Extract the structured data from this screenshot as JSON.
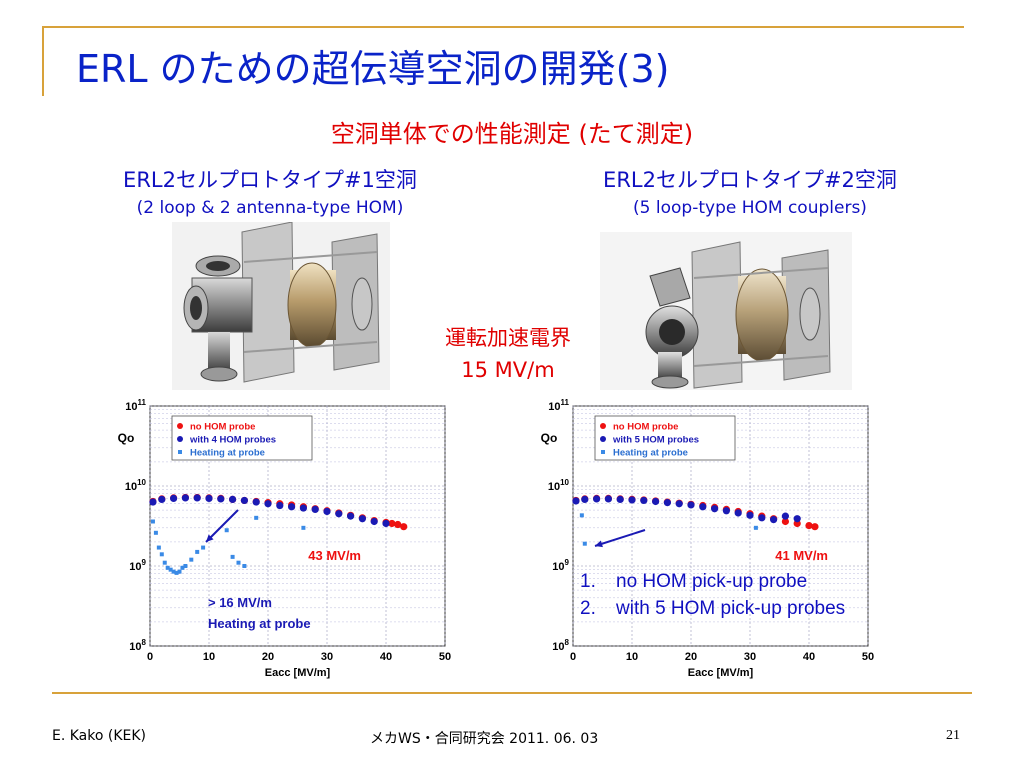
{
  "slide": {
    "title": "ERL のための超伝導空洞の開発(3)",
    "subtitle": "空洞単体での性能測定 (たて測定)",
    "cavity1": {
      "title": "ERL2セルプロトタイプ#1空洞",
      "subtitle": "(2 loop & 2 antenna-type HOM)"
    },
    "cavity2": {
      "title": "ERL2セルプロトタイプ#2空洞",
      "subtitle": "(5 loop-type HOM couplers)"
    },
    "operating_field": {
      "label": "運転加速電界",
      "value": "15 MV/m"
    },
    "notes": [
      {
        "num": "1.",
        "text": "no HOM pick-up probe"
      },
      {
        "num": "2.",
        "text": "with 5 HOM pick-up probes"
      }
    ],
    "footer": {
      "author": "E. Kako (KEK)",
      "event": "メカWS・合同研究会 2011. 06. 03",
      "page": "21"
    }
  },
  "colors": {
    "title": "#0a23c8",
    "accent_red": "#e00000",
    "rule": "#d8a23a",
    "series_red": "#ee1111",
    "series_blue": "#1a1ab4",
    "series_heating": "#3a8ae6"
  },
  "chart_data": [
    {
      "type": "scatter",
      "xlabel": "Eacc [MV/m]",
      "ylabel": "Qo",
      "xlim": [
        0,
        50
      ],
      "xticks": [
        0,
        10,
        20,
        30,
        40,
        50
      ],
      "ylim": [
        100000000.0,
        100000000000.0
      ],
      "yscale": "log",
      "ytick_labels": [
        "10^11",
        "10^10",
        "10^9",
        "10^8"
      ],
      "grid": true,
      "legend": "top-left",
      "series": [
        {
          "name": "no HOM probe",
          "marker": "circle",
          "color": "#ee1111",
          "x": [
            0.5,
            2,
            4,
            6,
            8,
            10,
            12,
            14,
            16,
            18,
            20,
            22,
            24,
            26,
            28,
            30,
            32,
            34,
            36,
            38,
            40,
            41,
            42,
            43
          ],
          "y": [
            6400000000.0,
            6900000000.0,
            7100000000.0,
            7200000000.0,
            7200000000.0,
            7100000000.0,
            7000000000.0,
            6800000000.0,
            6600000000.0,
            6400000000.0,
            6200000000.0,
            6000000000.0,
            5800000000.0,
            5500000000.0,
            5200000000.0,
            4900000000.0,
            4600000000.0,
            4300000000.0,
            4000000000.0,
            3700000000.0,
            3500000000.0,
            3400000000.0,
            3300000000.0,
            3100000000.0
          ]
        },
        {
          "name": "with 4 HOM probes",
          "marker": "circle",
          "color": "#1a1ab4",
          "x": [
            0.5,
            2,
            4,
            6,
            8,
            10,
            12,
            14,
            16,
            18,
            20,
            22,
            24,
            26,
            28,
            30,
            32,
            34,
            36,
            38,
            40
          ],
          "y": [
            6300000000.0,
            6800000000.0,
            7000000000.0,
            7100000000.0,
            7100000000.0,
            7000000000.0,
            6900000000.0,
            6800000000.0,
            6600000000.0,
            6300000000.0,
            6000000000.0,
            5700000000.0,
            5500000000.0,
            5300000000.0,
            5100000000.0,
            4800000000.0,
            4500000000.0,
            4200000000.0,
            3900000000.0,
            3600000000.0,
            3400000000.0
          ]
        },
        {
          "name": "Heating at probe",
          "marker": "square",
          "color": "#3a8ae6",
          "x": [
            0.5,
            1,
            1.5,
            2,
            2.5,
            3,
            3.5,
            4,
            4.5,
            5,
            5.5,
            6,
            7,
            8,
            9,
            13,
            14,
            15,
            16,
            18,
            26
          ],
          "y": [
            3600000000.0,
            2600000000.0,
            1700000000.0,
            1400000000.0,
            1100000000.0,
            950000000.0,
            900000000.0,
            850000000.0,
            820000000.0,
            850000000.0,
            950000000.0,
            1000000000.0,
            1200000000.0,
            1500000000.0,
            1700000000.0,
            2800000000.0,
            1300000000.0,
            1100000000.0,
            1000000000.0,
            4000000000.0,
            3000000000.0
          ]
        }
      ],
      "annotations": [
        {
          "text": "43 MV/m",
          "color": "#ee1111"
        },
        {
          "text": "> 16 MV/m",
          "color": "#1a1ab4"
        },
        {
          "text": "Heating at probe",
          "color": "#1a1ab4"
        }
      ]
    },
    {
      "type": "scatter",
      "xlabel": "Eacc [MV/m]",
      "ylabel": "Qo",
      "xlim": [
        0,
        50
      ],
      "xticks": [
        0,
        10,
        20,
        30,
        40,
        50
      ],
      "ylim": [
        100000000.0,
        100000000000.0
      ],
      "yscale": "log",
      "ytick_labels": [
        "10^11",
        "10^10",
        "10^9",
        "10^8"
      ],
      "grid": true,
      "legend": "top-left",
      "series": [
        {
          "name": "no HOM probe",
          "marker": "circle",
          "color": "#ee1111",
          "x": [
            0.5,
            2,
            4,
            6,
            8,
            10,
            12,
            14,
            16,
            18,
            20,
            22,
            24,
            26,
            28,
            30,
            32,
            34,
            36,
            38,
            40,
            41
          ],
          "y": [
            6600000000.0,
            6900000000.0,
            7000000000.0,
            7000000000.0,
            6900000000.0,
            6800000000.0,
            6700000000.0,
            6500000000.0,
            6300000000.0,
            6100000000.0,
            5900000000.0,
            5700000000.0,
            5400000000.0,
            5100000000.0,
            4800000000.0,
            4500000000.0,
            4200000000.0,
            3900000000.0,
            3600000000.0,
            3400000000.0,
            3200000000.0,
            3100000000.0
          ]
        },
        {
          "name": "with 5 HOM probes",
          "marker": "circle",
          "color": "#1a1ab4",
          "x": [
            0.5,
            2,
            4,
            6,
            8,
            10,
            12,
            14,
            16,
            18,
            20,
            22,
            24,
            26,
            28,
            30,
            32,
            34,
            36,
            38
          ],
          "y": [
            6500000000.0,
            6800000000.0,
            6900000000.0,
            6900000000.0,
            6800000000.0,
            6700000000.0,
            6600000000.0,
            6400000000.0,
            6200000000.0,
            6000000000.0,
            5800000000.0,
            5500000000.0,
            5200000000.0,
            4900000000.0,
            4600000000.0,
            4300000000.0,
            4000000000.0,
            3800000000.0,
            4200000000.0,
            3900000000.0
          ]
        },
        {
          "name": "Heating at probe",
          "marker": "square",
          "color": "#3a8ae6",
          "x": [
            1.5,
            2,
            31
          ],
          "y": [
            4300000000.0,
            1900000000.0,
            3000000000.0
          ]
        }
      ],
      "annotations": [
        {
          "text": "41 MV/m",
          "color": "#ee1111"
        }
      ]
    }
  ]
}
